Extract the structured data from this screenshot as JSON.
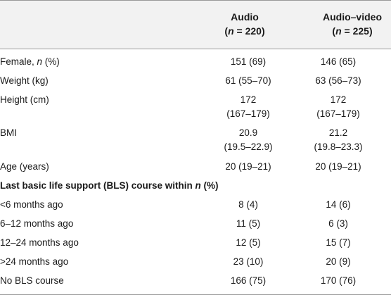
{
  "header": {
    "col2_name": "Audio",
    "col2_n_prefix": "(",
    "col2_n_var": "n",
    "col2_n_value": " = 220)",
    "col3_name": "Audio–video",
    "col3_n_prefix": "(",
    "col3_n_var": "n",
    "col3_n_value": " = 225)"
  },
  "rows": [
    {
      "label_main": "Female, ",
      "label_italic": "n",
      "label_tail": " (%)",
      "audio": [
        "151 (69)"
      ],
      "audio_video": [
        "146 (65)"
      ]
    },
    {
      "label_main": "Weight (kg)",
      "audio": [
        "61 (55–70)"
      ],
      "audio_video": [
        "63 (56–73)"
      ]
    },
    {
      "label_main": "Height (cm)",
      "audio": [
        "172",
        "(167–179)"
      ],
      "audio_video": [
        "172",
        "(167–179)"
      ]
    },
    {
      "label_main": "BMI",
      "audio": [
        "20.9",
        "(19.5–22.9)"
      ],
      "audio_video": [
        "21.2",
        "(19.8–23.3)"
      ]
    },
    {
      "label_main": "Age (years)",
      "audio": [
        "20 (19–21)"
      ],
      "audio_video": [
        "20 (19–21)"
      ]
    }
  ],
  "section": {
    "label_main": "Last basic life support (BLS) course within ",
    "label_italic": "n",
    "label_tail": " (%)"
  },
  "bls_rows": [
    {
      "label": "<6 months ago",
      "audio": "8 (4)",
      "audio_video": "14 (6)"
    },
    {
      "label": "6–12 months ago",
      "audio": "11 (5)",
      "audio_video": "6 (3)"
    },
    {
      "label": "12–24 months ago",
      "audio": "12 (5)",
      "audio_video": "15 (7)"
    },
    {
      "label": ">24 months ago",
      "audio": "23 (10)",
      "audio_video": "20 (9)"
    },
    {
      "label": "No BLS course",
      "audio": "166 (75)",
      "audio_video": "170 (76)"
    }
  ]
}
